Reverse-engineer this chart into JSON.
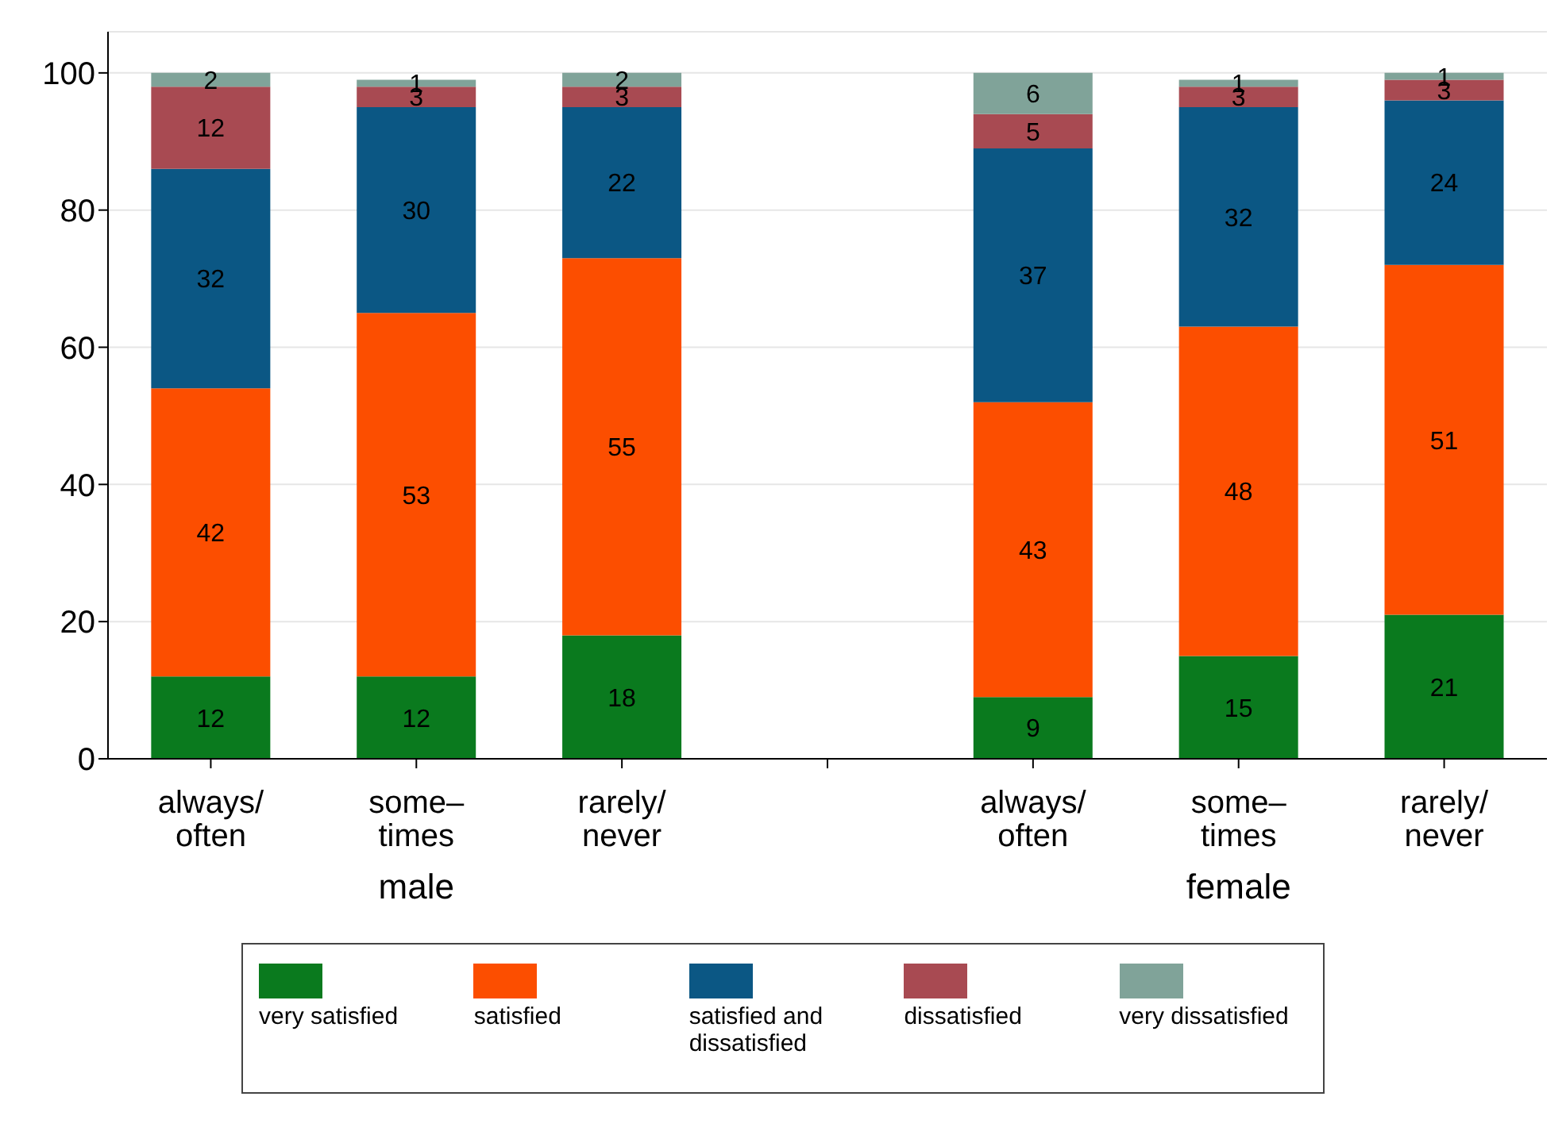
{
  "chart_data": {
    "type": "bar",
    "stacked": true,
    "categories": [
      "always/\noften",
      "some–\ntimes",
      "rarely/\nnever",
      null,
      "always/\noften",
      "some–\ntimes",
      "rarely/\nnever"
    ],
    "series": [
      {
        "name": "very satisfied",
        "color": "#0a7a1e",
        "values": [
          12,
          12,
          18,
          null,
          9,
          15,
          21
        ]
      },
      {
        "name": "satisfied",
        "color": "#fc4e00",
        "values": [
          42,
          53,
          55,
          null,
          43,
          48,
          51
        ]
      },
      {
        "name": "satisfied and dissatisfied",
        "color": "#0b5784",
        "values": [
          32,
          30,
          22,
          null,
          37,
          32,
          24
        ]
      },
      {
        "name": "dissatisfied",
        "color": "#a84a52",
        "values": [
          12,
          3,
          3,
          null,
          5,
          3,
          3
        ]
      },
      {
        "name": "very dissatisfied",
        "color": "#80a399",
        "values": [
          2,
          1,
          2,
          null,
          6,
          1,
          1
        ]
      }
    ],
    "ylim": [
      0,
      106
    ],
    "yticks": [
      0,
      20,
      40,
      60,
      80,
      100
    ],
    "grid": "y",
    "legend": "bottom",
    "data_labels": true,
    "annotations": [
      "male",
      "female"
    ]
  }
}
